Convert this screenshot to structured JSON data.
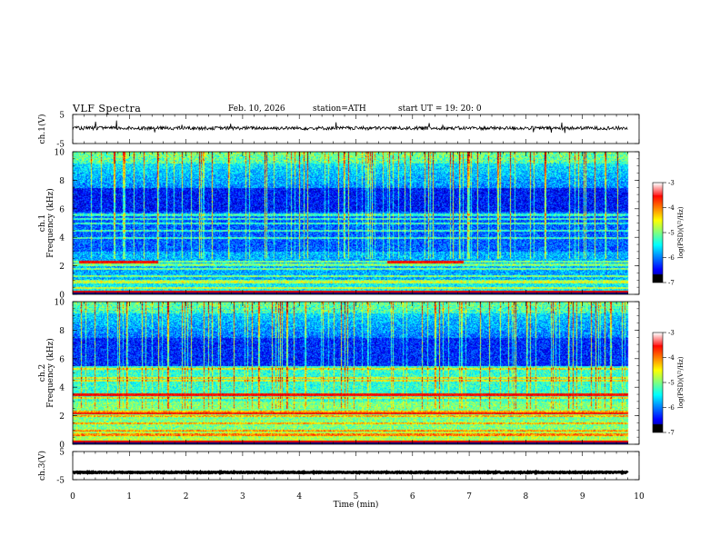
{
  "header": {
    "title": "VLF  Spectra",
    "date": "Feb. 10, 2026",
    "station": "station=ATH",
    "start": "start  UT  =    19: 20: 0"
  },
  "chart_data": [
    {
      "type": "line",
      "name": "ch1-waveform",
      "ylabel": "ch.1(V)",
      "ylim": [
        -5,
        5
      ],
      "ytick_labels": [
        "5",
        "-5"
      ],
      "x_range_min": [
        0,
        9.8
      ],
      "level": 0.3,
      "noise_amplitude": 0.6,
      "spikes_max": 2.6
    },
    {
      "type": "heatmap",
      "name": "ch1-spectrogram",
      "ylabel": "ch.1\nFrequency (kHz)",
      "ylim": [
        0,
        10
      ],
      "ytick_labels": [
        "0",
        "2",
        "4",
        "6",
        "8",
        "10"
      ],
      "x_range_min": [
        0,
        9.8
      ],
      "colorbar": {
        "label": "log(PSD)(V²/Hz)",
        "range": [
          -7,
          -3
        ],
        "tick_labels": [
          "-3",
          "-4",
          "-5",
          "-6",
          "-7"
        ]
      },
      "horizontal_lines_khz": [
        0.5,
        0.85,
        1.0,
        1.3,
        1.8,
        2.1,
        2.3,
        4.0,
        4.5,
        5.0,
        5.3,
        5.6
      ],
      "red_segments": [
        {
          "f_khz": 2.3,
          "t_min": [
            0.1,
            1.5
          ]
        },
        {
          "f_khz": 2.3,
          "t_min": [
            5.55,
            6.9
          ]
        }
      ]
    },
    {
      "type": "heatmap",
      "name": "ch2-spectrogram",
      "ylabel": "ch.2\nFrequency (kHz)",
      "ylim": [
        0,
        10
      ],
      "ytick_labels": [
        "0",
        "2",
        "4",
        "6",
        "8",
        "10"
      ],
      "x_range_min": [
        0,
        9.8
      ],
      "colorbar": {
        "label": "log(PSD)(V²/Hz)",
        "range": [
          -7,
          -3
        ],
        "tick_labels": [
          "-3",
          "-4",
          "-5",
          "-6",
          "-7"
        ]
      },
      "horizontal_lines_khz": [
        0.7,
        1.0,
        1.5,
        2.0,
        2.3,
        3.3,
        3.5,
        4.5,
        4.7,
        5.3
      ],
      "red_segments": [
        {
          "f_khz": 3.5,
          "t_min": [
            0.0,
            9.8
          ]
        },
        {
          "f_khz": 2.2,
          "t_min": [
            0.0,
            9.8
          ]
        }
      ]
    },
    {
      "type": "line",
      "name": "ch3-waveform",
      "ylabel": "ch.3(V)",
      "ylim": [
        -5,
        5
      ],
      "ytick_labels": [
        "5",
        "-5"
      ],
      "x_range_min": [
        0,
        9.8
      ],
      "level": -2.4,
      "noise_amplitude": 0.15,
      "xlabel": "Time  (min)",
      "xlim": [
        0,
        10
      ],
      "xtick_labels": [
        "0",
        "1",
        "2",
        "3",
        "4",
        "5",
        "6",
        "7",
        "8",
        "9",
        "10"
      ]
    }
  ]
}
